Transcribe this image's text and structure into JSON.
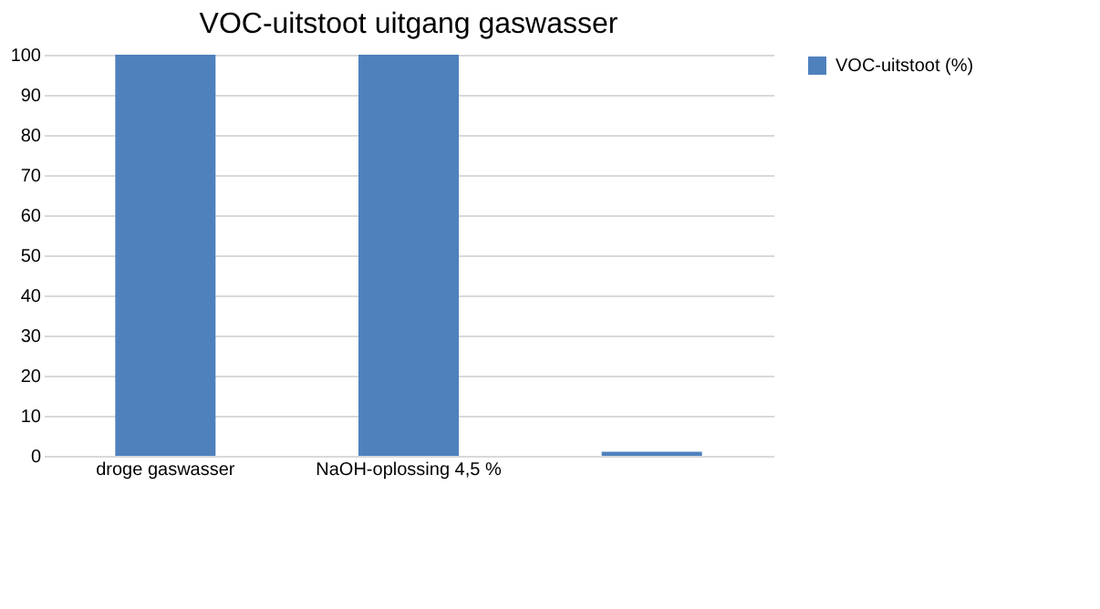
{
  "chart_data": {
    "type": "bar",
    "title": "VOC-uitstoot uitgang gaswasser",
    "categories": [
      "droge gaswasser",
      "NaOH-oplossing 4,5 %",
      null
    ],
    "series": [
      {
        "name": "VOC-uitstoot (%)",
        "color": "#4f81bd",
        "values": [
          100,
          100,
          1
        ]
      }
    ],
    "ylim": [
      0,
      100
    ],
    "yticks": [
      0,
      10,
      20,
      30,
      40,
      50,
      60,
      70,
      80,
      90,
      100
    ],
    "grid": "y",
    "legend": "right"
  }
}
